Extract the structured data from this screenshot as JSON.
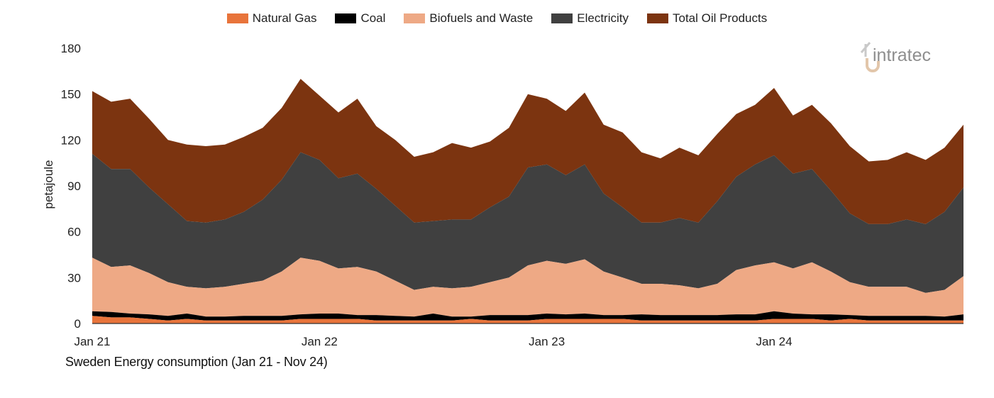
{
  "legend": [
    {
      "label": "Natural Gas",
      "color": "#e8743b"
    },
    {
      "label": "Coal",
      "color": "#000000"
    },
    {
      "label": "Biofuels and Waste",
      "color": "#eea985"
    },
    {
      "label": "Electricity",
      "color": "#404040"
    },
    {
      "label": "Total Oil Products",
      "color": "#7c3410"
    }
  ],
  "logo": {
    "text": "intratec"
  },
  "caption": "Sweden Energy consumption (Jan 21 - Nov 24)",
  "chart_data": {
    "type": "area",
    "stacked": true,
    "ylabel": "petajoule",
    "ylim": [
      0,
      180
    ],
    "yticks": [
      0,
      30,
      60,
      90,
      120,
      150,
      180
    ],
    "xticks": [
      "Jan 21",
      "Jan 22",
      "Jan 23",
      "Jan 24"
    ],
    "x": [
      "2021-01",
      "2021-02",
      "2021-03",
      "2021-04",
      "2021-05",
      "2021-06",
      "2021-07",
      "2021-08",
      "2021-09",
      "2021-10",
      "2021-11",
      "2021-12",
      "2022-01",
      "2022-02",
      "2022-03",
      "2022-04",
      "2022-05",
      "2022-06",
      "2022-07",
      "2022-08",
      "2022-09",
      "2022-10",
      "2022-11",
      "2022-12",
      "2023-01",
      "2023-02",
      "2023-03",
      "2023-04",
      "2023-05",
      "2023-06",
      "2023-07",
      "2023-08",
      "2023-09",
      "2023-10",
      "2023-11",
      "2023-12",
      "2024-01",
      "2024-02",
      "2024-03",
      "2024-04",
      "2024-05",
      "2024-06",
      "2024-07",
      "2024-08",
      "2024-09",
      "2024-10",
      "2024-11"
    ],
    "grid": false,
    "legend_position": "top",
    "series": [
      {
        "name": "Natural Gas",
        "color": "#e8743b",
        "totals": [
          5,
          4,
          4,
          3,
          2,
          3,
          2,
          2,
          2,
          2,
          2,
          3,
          3,
          3,
          3,
          2,
          2,
          2,
          2,
          2,
          3,
          2,
          2,
          2,
          3,
          3,
          3,
          3,
          3,
          2,
          2,
          2,
          2,
          2,
          2,
          2,
          3,
          3,
          3,
          2,
          3,
          2,
          2,
          2,
          2,
          2,
          2
        ]
      },
      {
        "name": "Coal",
        "color": "#000000",
        "totals": [
          8,
          7.5,
          6.5,
          6,
          5,
          6.5,
          4.5,
          4.5,
          5,
          5,
          5,
          6,
          6.5,
          6.5,
          5.5,
          5.5,
          5,
          4.5,
          6.5,
          4.5,
          4.5,
          5.5,
          5.5,
          5.5,
          6.5,
          6,
          6.5,
          5.5,
          5.5,
          6,
          5.5,
          5.5,
          5.5,
          5.5,
          6,
          6,
          8,
          6.5,
          6,
          6,
          5.5,
          5,
          5,
          5,
          5,
          4.5,
          6
        ]
      },
      {
        "name": "Biofuels and Waste",
        "color": "#eea985",
        "totals": [
          43,
          37,
          38,
          33,
          27,
          24,
          23,
          24,
          26,
          28,
          34,
          43,
          41,
          36,
          37,
          34,
          28,
          22,
          24,
          23,
          24,
          27,
          30,
          38,
          41,
          39,
          42,
          34,
          30,
          26,
          26,
          25,
          23,
          26,
          35,
          38,
          40,
          36,
          40,
          34,
          27,
          24,
          24,
          24,
          20,
          22,
          31
        ]
      },
      {
        "name": "Electricity",
        "color": "#404040",
        "totals": [
          111,
          101,
          101,
          89,
          78,
          67,
          66,
          68,
          73,
          81,
          94,
          112,
          107,
          95,
          98,
          88,
          77,
          66,
          67,
          68,
          68,
          76,
          83,
          102,
          104,
          97,
          104,
          85,
          76,
          66,
          66,
          69,
          66,
          80,
          96,
          104,
          110,
          98,
          101,
          87,
          72,
          65,
          65,
          68,
          65,
          73,
          89
        ]
      },
      {
        "name": "Total Oil Products",
        "color": "#7c3410",
        "totals": [
          152,
          145,
          147,
          134,
          120,
          117,
          116,
          117,
          122,
          128,
          141,
          160,
          149,
          138,
          147,
          129,
          120,
          109,
          112,
          118,
          115,
          119,
          128,
          150,
          147,
          139,
          151,
          130,
          125,
          112,
          108,
          115,
          110,
          124,
          137,
          143,
          154,
          136,
          143,
          131,
          116,
          106,
          107,
          112,
          107,
          115,
          130
        ]
      }
    ]
  }
}
